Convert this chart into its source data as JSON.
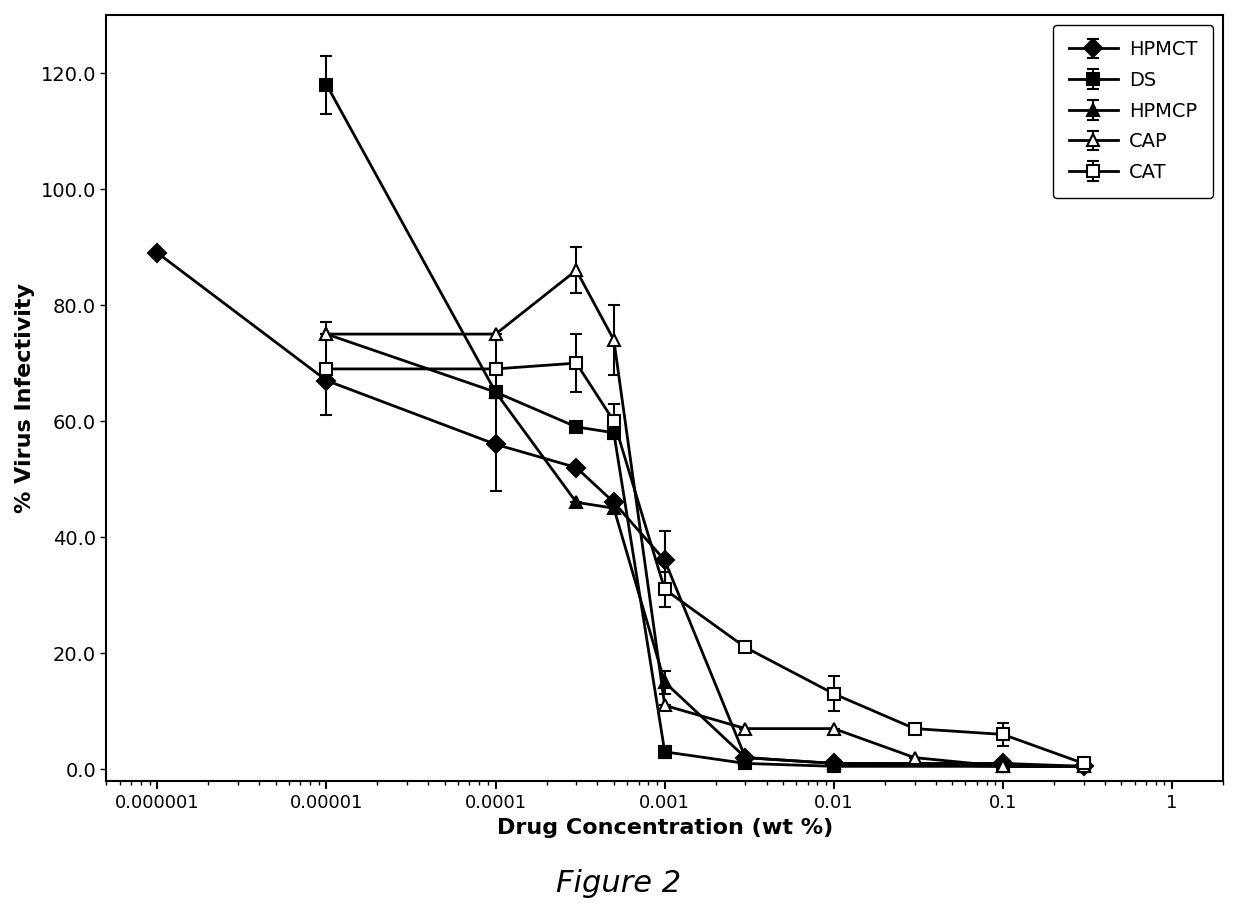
{
  "title": "Figure 2",
  "xlabel": "Drug Concentration (wt %)",
  "ylabel": "% Virus Infectivity",
  "ylim": [
    -2,
    130
  ],
  "yticks": [
    0.0,
    20.0,
    40.0,
    60.0,
    80.0,
    100.0,
    120.0
  ],
  "series": {
    "HPMCT": {
      "x": [
        1e-06,
        1e-05,
        0.0001,
        0.0003,
        0.0005,
        0.001,
        0.003,
        0.01,
        0.1,
        0.3
      ],
      "y": [
        89,
        67,
        56,
        52,
        46,
        36,
        2,
        1,
        1,
        0.5
      ],
      "yerr": [
        0,
        0,
        8,
        0,
        0,
        5,
        0,
        0,
        0,
        0
      ],
      "marker": "D",
      "mfc": "black",
      "mec": "black"
    },
    "DS": {
      "x": [
        1e-05,
        0.0001,
        0.0003,
        0.0005,
        0.001,
        0.003,
        0.01,
        0.1,
        0.3
      ],
      "y": [
        118,
        65,
        59,
        58,
        3,
        1,
        0.5,
        0.5,
        0.5
      ],
      "yerr": [
        5,
        0,
        0,
        0,
        1,
        0,
        0,
        0,
        0
      ],
      "marker": "s",
      "mfc": "black",
      "mec": "black"
    },
    "HPMCP": {
      "x": [
        1e-05,
        0.0001,
        0.0003,
        0.0005,
        0.001,
        0.003,
        0.01,
        0.1,
        0.3
      ],
      "y": [
        75,
        65,
        46,
        45,
        15,
        2,
        1,
        0.5,
        0.5
      ],
      "yerr": [
        0,
        0,
        0,
        0,
        2,
        0,
        0,
        0,
        0
      ],
      "marker": "^",
      "mfc": "black",
      "mec": "black"
    },
    "CAP": {
      "x": [
        1e-05,
        0.0001,
        0.0003,
        0.0005,
        0.001,
        0.003,
        0.01,
        0.03,
        0.1,
        0.3
      ],
      "y": [
        75,
        75,
        86,
        74,
        11,
        7,
        7,
        2,
        0.5,
        0.5
      ],
      "yerr": [
        0,
        0,
        4,
        6,
        0,
        0,
        0,
        0,
        0,
        0
      ],
      "marker": "^",
      "mfc": "white",
      "mec": "black"
    },
    "CAT": {
      "x": [
        1e-05,
        0.0001,
        0.0003,
        0.0005,
        0.001,
        0.003,
        0.01,
        0.03,
        0.1,
        0.3
      ],
      "y": [
        69,
        69,
        70,
        60,
        31,
        21,
        13,
        7,
        6,
        1
      ],
      "yerr": [
        8,
        5,
        5,
        3,
        3,
        0,
        3,
        0,
        2,
        0
      ],
      "marker": "s",
      "mfc": "white",
      "mec": "black"
    }
  },
  "legend_order": [
    "HPMCT",
    "DS",
    "HPMCP",
    "CAP",
    "CAT"
  ],
  "background_color": "white",
  "fig_width": 12.38,
  "fig_height": 9.07,
  "dpi": 100
}
